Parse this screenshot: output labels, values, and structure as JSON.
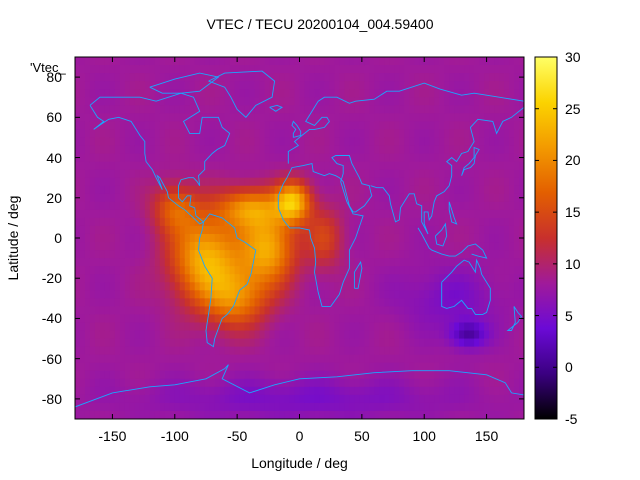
{
  "chart_data": {
    "type": "heatmap",
    "title": "VTEC / TECU 20200104_004.59400",
    "xlabel": "Longitude / deg",
    "ylabel": "Latitude / deg",
    "series_label": "'Vtec_",
    "xlim": [
      -180,
      180
    ],
    "ylim": [
      -90,
      90
    ],
    "x_ticks": [
      "-150",
      "-100",
      "-50",
      "0",
      "50",
      "100",
      "150"
    ],
    "x_tick_values": [
      -150,
      -100,
      -50,
      0,
      50,
      100,
      150
    ],
    "y_ticks": [
      "80",
      "60",
      "40",
      "20",
      "0",
      "-20",
      "-40",
      "-60",
      "-80"
    ],
    "y_tick_values": [
      80,
      60,
      40,
      20,
      0,
      -20,
      -40,
      -60,
      -80
    ],
    "colorbar": {
      "min": -5,
      "max": 30,
      "ticks": [
        "30",
        "25",
        "20",
        "15",
        "10",
        "5",
        "0",
        "-5"
      ],
      "tick_values": [
        30,
        25,
        20,
        15,
        10,
        5,
        0,
        -5
      ],
      "colors": [
        "#000000",
        "#3b0081",
        "#6b0ad6",
        "#a01a9a",
        "#c8302c",
        "#e35f00",
        "#f39a00",
        "#fbd300",
        "#ffff66"
      ]
    },
    "background_tec": 8,
    "tec_features": [
      {
        "name": "south-america-anomaly",
        "lon": -75,
        "lat": -10,
        "tec": 23,
        "lon_spread": 28,
        "lat_spread": 22
      },
      {
        "name": "atlantic-equatorial-crest",
        "lon": -25,
        "lat": -5,
        "tec": 22,
        "lon_spread": 22,
        "lat_spread": 18
      },
      {
        "name": "west-africa-peak",
        "lon": -5,
        "lat": 18,
        "tec": 23,
        "lon_spread": 14,
        "lat_spread": 10
      },
      {
        "name": "north-atlantic-crest",
        "lon": -40,
        "lat": 15,
        "tec": 19,
        "lon_spread": 25,
        "lat_spread": 10
      },
      {
        "name": "south-atlantic-high",
        "lon": -50,
        "lat": -30,
        "tec": 18,
        "lon_spread": 25,
        "lat_spread": 15
      },
      {
        "name": "central-america",
        "lon": -100,
        "lat": 15,
        "tec": 16,
        "lon_spread": 18,
        "lat_spread": 12
      },
      {
        "name": "africa-equatorial",
        "lon": 20,
        "lat": 0,
        "tec": 14,
        "lon_spread": 15,
        "lat_spread": 15
      },
      {
        "name": "australia-minimum",
        "lon": 135,
        "lat": -48,
        "tec": 1,
        "lon_spread": 15,
        "lat_spread": 7
      },
      {
        "name": "pacific-south-low",
        "lon": 120,
        "lat": -30,
        "tec": 5,
        "lon_spread": 40,
        "lat_spread": 15
      },
      {
        "name": "polar-south-low",
        "lon": 0,
        "lat": -80,
        "tec": 5,
        "lon_spread": 120,
        "lat_spread": 10
      }
    ],
    "coastlines": {
      "north-america": [
        [
          -168,
          66
        ],
        [
          -160,
          70
        ],
        [
          -140,
          70
        ],
        [
          -128,
          70
        ],
        [
          -115,
          68
        ],
        [
          -95,
          72
        ],
        [
          -85,
          70
        ],
        [
          -80,
          63
        ],
        [
          -93,
          58
        ],
        [
          -88,
          52
        ],
        [
          -80,
          52
        ],
        [
          -78,
          60
        ],
        [
          -65,
          60
        ],
        [
          -62,
          55
        ],
        [
          -56,
          52
        ],
        [
          -60,
          46
        ],
        [
          -66,
          44
        ],
        [
          -70,
          42
        ],
        [
          -76,
          38
        ],
        [
          -76,
          34
        ],
        [
          -81,
          31
        ],
        [
          -80,
          26
        ],
        [
          -82,
          28
        ],
        [
          -85,
          30
        ],
        [
          -89,
          30
        ],
        [
          -95,
          29
        ],
        [
          -97,
          26
        ],
        [
          -97,
          20
        ],
        [
          -94,
          18
        ],
        [
          -90,
          21
        ],
        [
          -87,
          21
        ],
        [
          -88,
          16
        ],
        [
          -84,
          15
        ],
        [
          -83,
          11
        ],
        [
          -79,
          9
        ],
        [
          -77,
          8
        ],
        [
          -80,
          7
        ],
        [
          -85,
          10
        ],
        [
          -92,
          14
        ],
        [
          -97,
          16
        ],
        [
          -105,
          20
        ],
        [
          -106,
          23
        ],
        [
          -112,
          30
        ],
        [
          -114,
          31
        ],
        [
          -110,
          24
        ],
        [
          -115,
          30
        ],
        [
          -118,
          34
        ],
        [
          -123,
          38
        ],
        [
          -124,
          42
        ],
        [
          -124,
          48
        ],
        [
          -128,
          51
        ],
        [
          -135,
          58
        ],
        [
          -145,
          60
        ],
        [
          -153,
          59
        ],
        [
          -158,
          57
        ],
        [
          -165,
          54
        ],
        [
          -157,
          58
        ],
        [
          -162,
          60
        ],
        [
          -165,
          63
        ],
        [
          -168,
          66
        ]
      ],
      "greenland": [
        [
          -73,
          78
        ],
        [
          -60,
          82
        ],
        [
          -30,
          83
        ],
        [
          -20,
          78
        ],
        [
          -22,
          70
        ],
        [
          -35,
          66
        ],
        [
          -43,
          60
        ],
        [
          -50,
          64
        ],
        [
          -55,
          70
        ],
        [
          -60,
          75
        ],
        [
          -73,
          78
        ]
      ],
      "south-america": [
        [
          -77,
          8
        ],
        [
          -72,
          12
        ],
        [
          -62,
          10
        ],
        [
          -52,
          5
        ],
        [
          -50,
          0
        ],
        [
          -44,
          -2
        ],
        [
          -35,
          -6
        ],
        [
          -37,
          -12
        ],
        [
          -39,
          -18
        ],
        [
          -42,
          -23
        ],
        [
          -48,
          -26
        ],
        [
          -53,
          -34
        ],
        [
          -58,
          -38
        ],
        [
          -62,
          -40
        ],
        [
          -65,
          -45
        ],
        [
          -68,
          -50
        ],
        [
          -69,
          -54
        ],
        [
          -74,
          -52
        ],
        [
          -75,
          -46
        ],
        [
          -73,
          -38
        ],
        [
          -71,
          -30
        ],
        [
          -70,
          -20
        ],
        [
          -76,
          -14
        ],
        [
          -81,
          -6
        ],
        [
          -80,
          0
        ],
        [
          -78,
          4
        ],
        [
          -77,
          8
        ]
      ],
      "africa-eurasia": [
        [
          -17,
          21
        ],
        [
          -17,
          15
        ],
        [
          -13,
          9
        ],
        [
          -8,
          5
        ],
        [
          0,
          5
        ],
        [
          8,
          4
        ],
        [
          9,
          0
        ],
        [
          12,
          -5
        ],
        [
          13,
          -12
        ],
        [
          12,
          -17
        ],
        [
          15,
          -27
        ],
        [
          18,
          -34
        ],
        [
          25,
          -34
        ],
        [
          32,
          -28
        ],
        [
          35,
          -22
        ],
        [
          40,
          -15
        ],
        [
          40,
          -6
        ],
        [
          45,
          0
        ],
        [
          51,
          11
        ],
        [
          43,
          12
        ],
        [
          38,
          18
        ],
        [
          33,
          28
        ],
        [
          35,
          32
        ],
        [
          35,
          36
        ],
        [
          30,
          37
        ],
        [
          26,
          40
        ],
        [
          29,
          41
        ],
        [
          40,
          41
        ],
        [
          42,
          37
        ],
        [
          48,
          30
        ],
        [
          50,
          27
        ],
        [
          56,
          26
        ],
        [
          57,
          23
        ],
        [
          58,
          21
        ],
        [
          52,
          16
        ],
        [
          45,
          13
        ],
        [
          43,
          13
        ],
        [
          40,
          16
        ],
        [
          35,
          28
        ],
        [
          32,
          30
        ],
        [
          29,
          31
        ],
        [
          24,
          32
        ],
        [
          20,
          31
        ],
        [
          11,
          33
        ],
        [
          10,
          37
        ],
        [
          3,
          36
        ],
        [
          -6,
          35
        ],
        [
          -10,
          30
        ],
        [
          -13,
          27
        ],
        [
          -17,
          21
        ]
      ],
      "europe-asia-north": [
        [
          -9,
          37
        ],
        [
          -9,
          43
        ],
        [
          -1,
          46
        ],
        [
          -4,
          48
        ],
        [
          2,
          51
        ],
        [
          8,
          54
        ],
        [
          12,
          54
        ],
        [
          20,
          55
        ],
        [
          24,
          58
        ],
        [
          22,
          60
        ],
        [
          18,
          60
        ],
        [
          12,
          56
        ],
        [
          5,
          58
        ],
        [
          10,
          63
        ],
        [
          15,
          68
        ],
        [
          20,
          70
        ],
        [
          30,
          70
        ],
        [
          40,
          67
        ],
        [
          45,
          68
        ],
        [
          60,
          69
        ],
        [
          70,
          73
        ],
        [
          80,
          73
        ],
        [
          100,
          77
        ],
        [
          113,
          74
        ],
        [
          130,
          71
        ],
        [
          140,
          72
        ],
        [
          160,
          70
        ],
        [
          170,
          69
        ],
        [
          180,
          68
        ]
      ],
      "asia-east": [
        [
          180,
          65
        ],
        [
          170,
          60
        ],
        [
          163,
          58
        ],
        [
          158,
          52
        ],
        [
          155,
          58
        ],
        [
          143,
          59
        ],
        [
          137,
          55
        ],
        [
          140,
          48
        ],
        [
          135,
          43
        ],
        [
          130,
          42
        ],
        [
          126,
          38
        ],
        [
          122,
          40
        ],
        [
          118,
          38
        ],
        [
          122,
          36
        ],
        [
          122,
          31
        ],
        [
          120,
          26
        ],
        [
          116,
          23
        ],
        [
          110,
          21
        ],
        [
          108,
          18
        ],
        [
          106,
          11
        ],
        [
          104,
          9
        ],
        [
          103,
          13
        ],
        [
          100,
          13
        ],
        [
          100,
          7
        ],
        [
          103,
          2
        ],
        [
          98,
          8
        ],
        [
          98,
          16
        ],
        [
          94,
          17
        ],
        [
          92,
          22
        ],
        [
          88,
          22
        ],
        [
          86,
          20
        ],
        [
          81,
          15
        ],
        [
          80,
          9
        ],
        [
          77,
          8
        ],
        [
          73,
          17
        ],
        [
          72,
          21
        ],
        [
          67,
          25
        ],
        [
          62,
          25
        ],
        [
          57,
          26
        ]
      ],
      "australia": [
        [
          114,
          -22
        ],
        [
          114,
          -34
        ],
        [
          118,
          -35
        ],
        [
          124,
          -34
        ],
        [
          130,
          -31
        ],
        [
          135,
          -35
        ],
        [
          138,
          -35
        ],
        [
          141,
          -38
        ],
        [
          147,
          -38
        ],
        [
          150,
          -37
        ],
        [
          153,
          -31
        ],
        [
          153,
          -25
        ],
        [
          146,
          -18
        ],
        [
          145,
          -15
        ],
        [
          142,
          -11
        ],
        [
          141,
          -17
        ],
        [
          136,
          -12
        ],
        [
          132,
          -11
        ],
        [
          126,
          -14
        ],
        [
          122,
          -17
        ],
        [
          114,
          -22
        ]
      ],
      "antarctica": [
        [
          -180,
          -84
        ],
        [
          -150,
          -77
        ],
        [
          -120,
          -74
        ],
        [
          -100,
          -73
        ],
        [
          -75,
          -70
        ],
        [
          -60,
          -65
        ],
        [
          -57,
          -63
        ],
        [
          -62,
          -70
        ],
        [
          -40,
          -77
        ],
        [
          -20,
          -73
        ],
        [
          0,
          -70
        ],
        [
          30,
          -69
        ],
        [
          60,
          -67
        ],
        [
          90,
          -66
        ],
        [
          120,
          -66
        ],
        [
          150,
          -68
        ],
        [
          165,
          -72
        ],
        [
          170,
          -77
        ],
        [
          180,
          -78
        ]
      ],
      "indonesia": [
        [
          95,
          5
        ],
        [
          98,
          2
        ],
        [
          104,
          -5
        ],
        [
          106,
          -6
        ],
        [
          110,
          -7
        ],
        [
          114,
          -8
        ],
        [
          120,
          -9
        ],
        [
          125,
          -9
        ],
        [
          130,
          -7
        ],
        [
          135,
          -4
        ],
        [
          141,
          -3
        ],
        [
          147,
          -6
        ],
        [
          150,
          -10
        ],
        [
          143,
          -9
        ],
        [
          138,
          -8
        ]
      ],
      "borneo": [
        [
          109,
          1
        ],
        [
          110,
          -3
        ],
        [
          115,
          -4
        ],
        [
          118,
          1
        ],
        [
          117,
          7
        ],
        [
          114,
          4
        ],
        [
          109,
          1
        ]
      ],
      "japan": [
        [
          130,
          31
        ],
        [
          132,
          34
        ],
        [
          137,
          35
        ],
        [
          140,
          37
        ],
        [
          141,
          41
        ],
        [
          144,
          44
        ],
        [
          140,
          45
        ],
        [
          140,
          40
        ],
        [
          136,
          37
        ],
        [
          132,
          35
        ],
        [
          130,
          31
        ]
      ],
      "uk": [
        [
          -5,
          50
        ],
        [
          1,
          51
        ],
        [
          1,
          53
        ],
        [
          -2,
          56
        ],
        [
          -5,
          58
        ],
        [
          -6,
          56
        ],
        [
          -3,
          54
        ],
        [
          -5,
          52
        ],
        [
          -5,
          50
        ]
      ],
      "new-zealand": [
        [
          172,
          -34
        ],
        [
          175,
          -37
        ],
        [
          178,
          -39
        ],
        [
          175,
          -42
        ],
        [
          171,
          -44
        ],
        [
          167,
          -46
        ],
        [
          170,
          -46
        ],
        [
          173,
          -42
        ],
        [
          172,
          -34
        ]
      ],
      "madagascar": [
        [
          44,
          -25
        ],
        [
          47,
          -25
        ],
        [
          50,
          -15
        ],
        [
          49,
          -12
        ],
        [
          44,
          -17
        ],
        [
          44,
          -25
        ]
      ],
      "philippines": [
        [
          120,
          18
        ],
        [
          122,
          14
        ],
        [
          124,
          10
        ],
        [
          126,
          7
        ],
        [
          122,
          8
        ],
        [
          120,
          14
        ],
        [
          120,
          18
        ]
      ],
      "canada-islands": [
        [
          -120,
          75
        ],
        [
          -100,
          79
        ],
        [
          -80,
          82
        ],
        [
          -65,
          80
        ],
        [
          -80,
          73
        ],
        [
          -95,
          72
        ],
        [
          -110,
          72
        ],
        [
          -120,
          75
        ]
      ],
      "iceland": [
        [
          -24,
          65
        ],
        [
          -18,
          66
        ],
        [
          -14,
          65
        ],
        [
          -19,
          63
        ],
        [
          -24,
          65
        ]
      ]
    }
  }
}
